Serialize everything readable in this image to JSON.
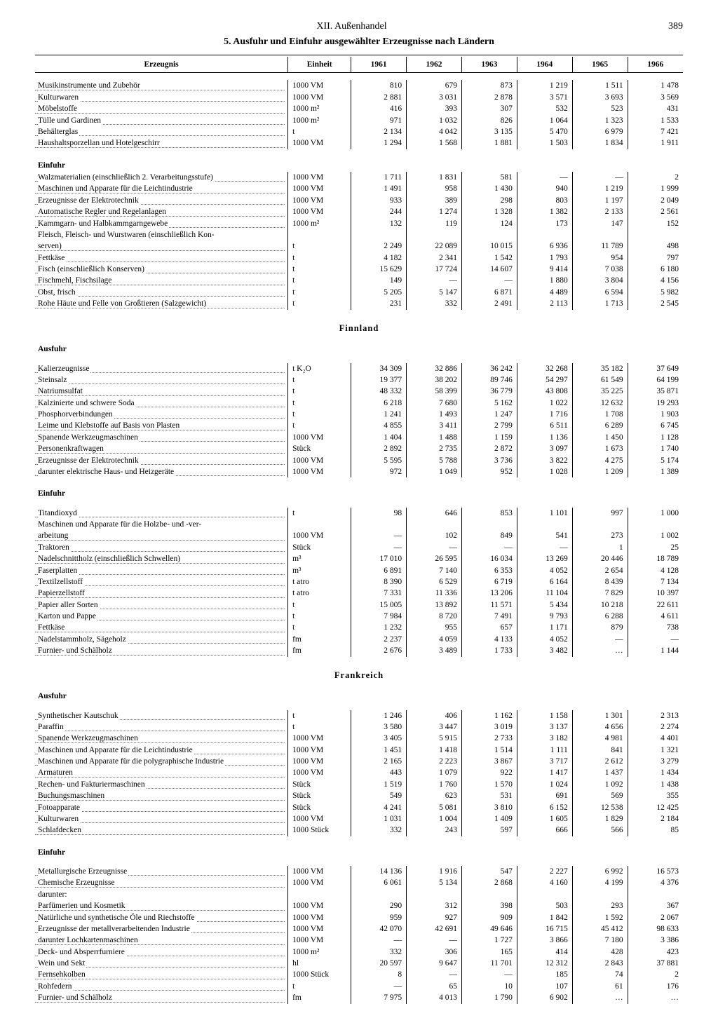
{
  "chapter": "XII. Außenhandel",
  "page": "389",
  "title": "5. Ausfuhr und Einfuhr ausgewählter Erzeugnisse nach Ländern",
  "columns": [
    "Erzeugnis",
    "Einheit",
    "1961",
    "1962",
    "1963",
    "1964",
    "1965",
    "1966"
  ],
  "countries": [
    {
      "name": "",
      "ausfuhr_label": "",
      "einfuhr_label": "Einfuhr",
      "ausfuhr": [
        {
          "n": "Musikinstrumente und Zubehör",
          "u": "1000 VM",
          "v": [
            "810",
            "679",
            "873",
            "1 219",
            "1 511",
            "1 478"
          ]
        },
        {
          "n": "Kulturwaren",
          "u": "1000 VM",
          "v": [
            "2 881",
            "3 031",
            "2 878",
            "3 571",
            "3 693",
            "3 569"
          ]
        },
        {
          "n": "Möbelstoffe",
          "u": "1000 m²",
          "v": [
            "416",
            "393",
            "307",
            "532",
            "523",
            "431"
          ]
        },
        {
          "n": "Tülle und Gardinen",
          "u": "1000 m²",
          "v": [
            "971",
            "1 032",
            "826",
            "1 064",
            "1 323",
            "1 533"
          ]
        },
        {
          "n": "Behälterglas",
          "u": "t",
          "v": [
            "2 134",
            "4 042",
            "3 135",
            "5 470",
            "6 979",
            "7 421"
          ]
        },
        {
          "n": "Haushaltsporzellan und Hotelgeschirr",
          "u": "1000 VM",
          "v": [
            "1 294",
            "1 568",
            "1 881",
            "1 503",
            "1 834",
            "1 911"
          ]
        }
      ],
      "einfuhr": [
        {
          "n": "Walzmaterialien (einschließlich 2. Verarbeitungsstufe)",
          "u": "1000 VM",
          "v": [
            "1 711",
            "1 831",
            "581",
            "—",
            "—",
            "2"
          ]
        },
        {
          "n": "Maschinen und Apparate für die Leichtindustrie",
          "u": "1000 VM",
          "v": [
            "1 491",
            "958",
            "1 430",
            "940",
            "1 219",
            "1 999"
          ]
        },
        {
          "n": "Erzeugnisse der Elektrotechnik",
          "u": "1000 VM",
          "v": [
            "933",
            "389",
            "298",
            "803",
            "1 197",
            "2 049"
          ]
        },
        {
          "n": "Automatische Regler und Regelanlagen",
          "u": "1000 VM",
          "v": [
            "244",
            "1 274",
            "1 328",
            "1 382",
            "2 133",
            "2 561"
          ]
        },
        {
          "n": "Kammgarn- und Halbkammgarngewebe",
          "u": "1000 m²",
          "v": [
            "132",
            "119",
            "124",
            "173",
            "147",
            "152"
          ]
        },
        {
          "n": "Fleisch, Fleisch- und Wurstwaren (einschließlich Kon-",
          "u": "",
          "v": [
            "",
            "",
            "",
            "",
            "",
            ""
          ]
        },
        {
          "n": "  serven)",
          "u": "t",
          "v": [
            "2 249",
            "22 089",
            "10 015",
            "6 936",
            "11 789",
            "498"
          ]
        },
        {
          "n": "Fettkäse",
          "u": "t",
          "v": [
            "4 182",
            "2 341",
            "1 542",
            "1 793",
            "954",
            "797"
          ]
        },
        {
          "n": "Fisch (einschließlich Konserven)",
          "u": "t",
          "v": [
            "15 629",
            "17 724",
            "14 607",
            "9 414",
            "7 038",
            "6 180"
          ]
        },
        {
          "n": "Fischmehl, Fischsilage",
          "u": "t",
          "v": [
            "149",
            "—",
            "—",
            "1 880",
            "3 804",
            "4 156"
          ]
        },
        {
          "n": "Obst, frisch",
          "u": "t",
          "v": [
            "5 205",
            "5 147",
            "6 871",
            "4 489",
            "6 594",
            "5 982"
          ]
        },
        {
          "n": "Rohe Häute und Felle von Großtieren (Salzgewicht)",
          "u": "t",
          "v": [
            "231",
            "332",
            "2 491",
            "2 113",
            "1 713",
            "2 545"
          ]
        }
      ]
    },
    {
      "name": "Finnland",
      "ausfuhr_label": "Ausfuhr",
      "einfuhr_label": "Einfuhr",
      "ausfuhr": [
        {
          "n": "Kalierzeugnisse",
          "u": "t K₂O",
          "v": [
            "34 309",
            "32 886",
            "36 242",
            "32 268",
            "35 182",
            "37 649"
          ]
        },
        {
          "n": "Steinsalz",
          "u": "t",
          "v": [
            "19 377",
            "38 202",
            "89 746",
            "54 297",
            "61 549",
            "64 199"
          ]
        },
        {
          "n": "Natriumsulfat",
          "u": "t",
          "v": [
            "48 332",
            "58 399",
            "36 779",
            "43 808",
            "35 225",
            "35 871"
          ]
        },
        {
          "n": "Kalzinierte und schwere Soda",
          "u": "t",
          "v": [
            "6 218",
            "7 680",
            "5 162",
            "1 022",
            "12 632",
            "19 293"
          ]
        },
        {
          "n": "Phosphorverbindungen",
          "u": "t",
          "v": [
            "1 241",
            "1 493",
            "1 247",
            "1 716",
            "1 708",
            "1 903"
          ]
        },
        {
          "n": "Leime und Klebstoffe auf Basis von Plasten",
          "u": "t",
          "v": [
            "4 855",
            "3 411",
            "2 799",
            "6 511",
            "6 289",
            "6 745"
          ]
        },
        {
          "n": "Spanende Werkzeugmaschinen",
          "u": "1000 VM",
          "v": [
            "1 404",
            "1 488",
            "1 159",
            "1 136",
            "1 450",
            "1 128"
          ]
        },
        {
          "n": "Personenkraftwagen",
          "u": "Stück",
          "v": [
            "2 892",
            "2 735",
            "2 872",
            "3 097",
            "1 673",
            "1 740"
          ]
        },
        {
          "n": "Erzeugnisse der Elektrotechnik",
          "u": "1000 VM",
          "v": [
            "5 595",
            "5 788",
            "3 736",
            "3 822",
            "4 275",
            "5 174"
          ]
        },
        {
          "n": "  darunter elektrische Haus- und Heizgeräte",
          "u": "1000 VM",
          "v": [
            "972",
            "1 049",
            "952",
            "1 028",
            "1 209",
            "1 389"
          ]
        }
      ],
      "einfuhr": [
        {
          "n": "Titandioxyd",
          "u": "t",
          "v": [
            "98",
            "646",
            "853",
            "1 101",
            "997",
            "1 000"
          ]
        },
        {
          "n": "Maschinen und Apparate für die Holzbe- und -ver-",
          "u": "",
          "v": [
            "",
            "",
            "",
            "",
            "",
            ""
          ]
        },
        {
          "n": "  arbeitung",
          "u": "1000 VM",
          "v": [
            "—",
            "102",
            "849",
            "541",
            "273",
            "1 002"
          ]
        },
        {
          "n": "Traktoren",
          "u": "Stück",
          "v": [
            "—",
            "—",
            "—",
            "—",
            "1",
            "25"
          ]
        },
        {
          "n": "Nadelschnittholz (einschließlich Schwellen)",
          "u": "m³",
          "v": [
            "17 010",
            "26 595",
            "16 034",
            "13 269",
            "20 446",
            "18 789"
          ]
        },
        {
          "n": "Faserplatten",
          "u": "m³",
          "v": [
            "6 891",
            "7 140",
            "6 353",
            "4 052",
            "2 654",
            "4 128"
          ]
        },
        {
          "n": "Textilzellstoff",
          "u": "t atro",
          "v": [
            "8 390",
            "6 529",
            "6 719",
            "6 164",
            "8 439",
            "7 134"
          ]
        },
        {
          "n": "Papierzellstoff",
          "u": "t atro",
          "v": [
            "7 331",
            "11 336",
            "13 206",
            "11 104",
            "7 829",
            "10 397"
          ]
        },
        {
          "n": "Papier aller Sorten",
          "u": "t",
          "v": [
            "15 005",
            "13 892",
            "11 571",
            "5 434",
            "10 218",
            "22 611"
          ]
        },
        {
          "n": "Karton und Pappe",
          "u": "t",
          "v": [
            "7 984",
            "8 720",
            "7 491",
            "9 793",
            "6 288",
            "4 611"
          ]
        },
        {
          "n": "Fettkäse",
          "u": "t",
          "v": [
            "1 232",
            "955",
            "657",
            "1 171",
            "879",
            "738"
          ]
        },
        {
          "n": "Nadelstammholz, Sägeholz",
          "u": "fm",
          "v": [
            "2 237",
            "4 059",
            "4 133",
            "4 052",
            "—",
            "—"
          ]
        },
        {
          "n": "Furnier- und Schälholz",
          "u": "fm",
          "v": [
            "2 676",
            "3 489",
            "1 733",
            "3 482",
            "…",
            "1 144"
          ]
        }
      ]
    },
    {
      "name": "Frankreich",
      "ausfuhr_label": "Ausfuhr",
      "einfuhr_label": "Einfuhr",
      "ausfuhr": [
        {
          "n": "Synthetischer Kautschuk",
          "u": "t",
          "v": [
            "1 246",
            "406",
            "1 162",
            "1 158",
            "1 301",
            "2 313"
          ]
        },
        {
          "n": "Paraffin",
          "u": "t",
          "v": [
            "3 580",
            "3 447",
            "3 019",
            "3 137",
            "4 656",
            "2 274"
          ]
        },
        {
          "n": "Spanende Werkzeugmaschinen",
          "u": "1000 VM",
          "v": [
            "3 405",
            "5 915",
            "2 733",
            "3 182",
            "4 981",
            "4 401"
          ]
        },
        {
          "n": "Maschinen und Apparate für die Leichtindustrie",
          "u": "1000 VM",
          "v": [
            "1 451",
            "1 418",
            "1 514",
            "1 111",
            "841",
            "1 321"
          ]
        },
        {
          "n": "Maschinen und Apparate für die polygraphische Industrie",
          "u": "1000 VM",
          "v": [
            "2 165",
            "2 223",
            "3 867",
            "3 717",
            "2 612",
            "3 279"
          ]
        },
        {
          "n": "Armaturen",
          "u": "1000 VM",
          "v": [
            "443",
            "1 079",
            "922",
            "1 417",
            "1 437",
            "1 434"
          ]
        },
        {
          "n": "Rechen- und Fakturiermaschinen",
          "u": "Stück",
          "v": [
            "1 519",
            "1 760",
            "1 570",
            "1 024",
            "1 092",
            "1 438"
          ]
        },
        {
          "n": "Buchungsmaschinen",
          "u": "Stück",
          "v": [
            "549",
            "623",
            "531",
            "691",
            "569",
            "355"
          ]
        },
        {
          "n": "Fotoapparate",
          "u": "Stück",
          "v": [
            "4 241",
            "5 081",
            "3 810",
            "6 152",
            "12 538",
            "12 425"
          ]
        },
        {
          "n": "Kulturwaren",
          "u": "1000 VM",
          "v": [
            "1 031",
            "1 004",
            "1 409",
            "1 605",
            "1 829",
            "2 184"
          ]
        },
        {
          "n": "Schlafdecken",
          "u": "1000 Stück",
          "v": [
            "332",
            "243",
            "597",
            "666",
            "566",
            "85"
          ]
        }
      ],
      "einfuhr": [
        {
          "n": "Metallurgische Erzeugnisse",
          "u": "1000 VM",
          "v": [
            "14 136",
            "1 916",
            "547",
            "2 227",
            "6 992",
            "16 573"
          ]
        },
        {
          "n": "Chemische Erzeugnisse",
          "u": "1000 VM",
          "v": [
            "6 061",
            "5 134",
            "2 868",
            "4 160",
            "4 199",
            "4 376"
          ]
        },
        {
          "n": "darunter:",
          "u": "",
          "v": [
            "",
            "",
            "",
            "",
            "",
            ""
          ]
        },
        {
          "n": "  Parfümerien und Kosmetik",
          "u": "1000 VM",
          "v": [
            "290",
            "312",
            "398",
            "503",
            "293",
            "367"
          ]
        },
        {
          "n": "  Natürliche und synthetische Öle und Riechstoffe",
          "u": "1000 VM",
          "v": [
            "959",
            "927",
            "909",
            "1 842",
            "1 592",
            "2 067"
          ]
        },
        {
          "n": "Erzeugnisse der metallverarbeitenden Industrie",
          "u": "1000 VM",
          "v": [
            "42 070",
            "42 691",
            "49 646",
            "16 715",
            "45 412",
            "98 633"
          ]
        },
        {
          "n": "  darunter Lochkartenmaschinen",
          "u": "1000 VM",
          "v": [
            "—",
            "—",
            "1 727",
            "3 866",
            "7 180",
            "3 386"
          ]
        },
        {
          "n": "Deck- und Absperrfurniere",
          "u": "1000 m²",
          "v": [
            "332",
            "306",
            "165",
            "414",
            "428",
            "423"
          ]
        },
        {
          "n": "Wein und Sekt",
          "u": "hl",
          "v": [
            "20 597",
            "9 647",
            "11 701",
            "12 312",
            "2 843",
            "37 881"
          ]
        },
        {
          "n": "Fernsehkolben",
          "u": "1000 Stück",
          "v": [
            "8",
            "—",
            "—",
            "185",
            "74",
            "2"
          ]
        },
        {
          "n": "Rohfedern",
          "u": "t",
          "v": [
            "—",
            "65",
            "10",
            "107",
            "61",
            "176"
          ]
        },
        {
          "n": "Furnier- und Schälholz",
          "u": "fm",
          "v": [
            "7 975",
            "4 013",
            "1 790",
            "6 902",
            "…",
            "…"
          ]
        }
      ]
    }
  ]
}
